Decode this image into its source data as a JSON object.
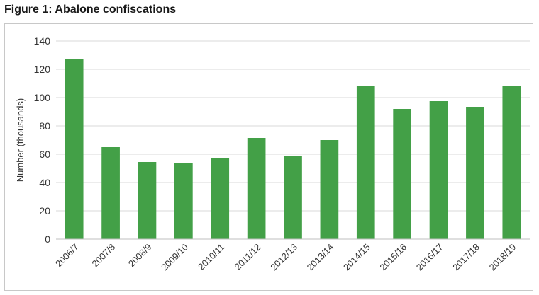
{
  "figure_title": "Figure 1: Abalone confiscations",
  "colors": {
    "bar": "#43a047",
    "grid": "#d9d9d9",
    "axis": "#bfbfbf",
    "text": "#333333"
  },
  "chart_data": {
    "type": "bar",
    "title": "",
    "xlabel": "",
    "ylabel": "Number (thousands)",
    "ylim": [
      0,
      140
    ],
    "yticks": [
      0,
      20,
      40,
      60,
      80,
      100,
      120,
      140
    ],
    "grid": true,
    "categories": [
      "2006/7",
      "2007/8",
      "2008/9",
      "2009/10",
      "2010/11",
      "2011/12",
      "2012/13",
      "2013/14",
      "2014/15",
      "2015/16",
      "2016/17",
      "2017/18",
      "2018/19"
    ],
    "values": [
      127.5,
      65,
      54.5,
      54,
      57,
      71.5,
      58.5,
      70,
      108.5,
      92,
      97.5,
      93.5,
      108.5
    ]
  }
}
